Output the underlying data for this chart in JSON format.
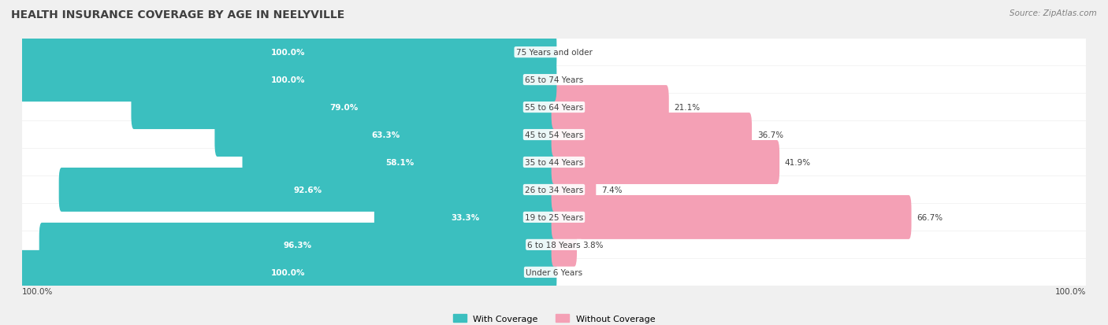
{
  "title": "HEALTH INSURANCE COVERAGE BY AGE IN NEELYVILLE",
  "source": "Source: ZipAtlas.com",
  "categories": [
    "Under 6 Years",
    "6 to 18 Years",
    "19 to 25 Years",
    "26 to 34 Years",
    "35 to 44 Years",
    "45 to 54 Years",
    "55 to 64 Years",
    "65 to 74 Years",
    "75 Years and older"
  ],
  "with_coverage": [
    100.0,
    96.3,
    33.3,
    92.6,
    58.1,
    63.3,
    79.0,
    100.0,
    100.0
  ],
  "without_coverage": [
    0.0,
    3.8,
    66.7,
    7.4,
    41.9,
    36.7,
    21.1,
    0.0,
    0.0
  ],
  "color_with": "#3bbfbf",
  "color_without": "#f4a0b5",
  "bg_color": "#f0f0f0",
  "bar_bg": "#ffffff",
  "title_color": "#404040",
  "label_color": "#404040",
  "source_color": "#808080",
  "legend_with": "With Coverage",
  "legend_without": "Without Coverage",
  "bar_height": 0.6,
  "figsize": [
    14.06,
    4.14
  ],
  "dpi": 100
}
